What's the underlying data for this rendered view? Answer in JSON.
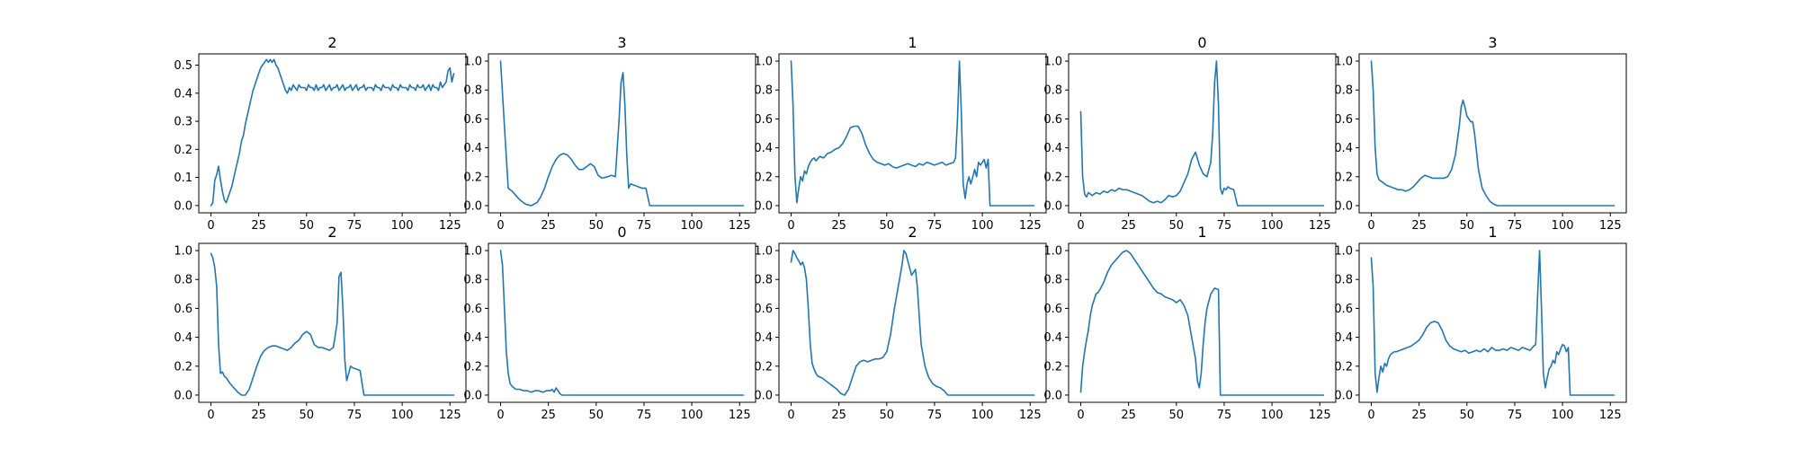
{
  "chart_data": [
    {
      "type": "line",
      "title": "2",
      "ylim": [
        -0.026,
        0.54
      ],
      "xlim": [
        -6.35,
        133.35
      ],
      "x_ticks": [
        "0",
        "25",
        "50",
        "75",
        "100",
        "125"
      ],
      "y_ticks": [
        "0.0",
        "0.1",
        "0.2",
        "0.3",
        "0.4",
        "0.5"
      ],
      "color": "#1f77b4",
      "x": [
        0,
        1,
        2,
        3,
        4,
        5,
        6,
        7,
        8,
        9,
        10,
        11,
        12,
        13,
        14,
        15,
        16,
        17,
        18,
        19,
        20,
        21,
        22,
        23,
        24,
        25,
        26,
        27,
        28,
        29,
        30,
        31,
        32,
        33,
        34,
        35,
        36,
        37,
        38,
        39,
        40,
        41,
        42,
        43,
        44,
        45,
        46,
        47,
        48,
        49,
        50,
        51,
        52,
        53,
        54,
        55,
        56,
        57,
        58,
        59,
        60,
        61,
        62,
        63,
        64,
        65,
        66,
        67,
        68,
        69,
        70,
        71,
        72,
        73,
        74,
        75,
        76,
        77,
        78,
        79,
        80,
        81,
        82,
        83,
        84,
        85,
        86,
        87,
        88,
        89,
        90,
        91,
        92,
        93,
        94,
        95,
        96,
        97,
        98,
        99,
        100,
        101,
        102,
        103,
        104,
        105,
        106,
        107,
        108,
        109,
        110,
        111,
        112,
        113,
        114,
        115,
        116,
        117,
        118,
        119,
        120,
        121,
        122,
        123,
        124,
        125,
        126,
        127
      ],
      "y": [
        0.0,
        0.01,
        0.09,
        0.11,
        0.14,
        0.09,
        0.05,
        0.02,
        0.01,
        0.03,
        0.05,
        0.07,
        0.1,
        0.13,
        0.16,
        0.19,
        0.23,
        0.25,
        0.29,
        0.32,
        0.35,
        0.38,
        0.41,
        0.43,
        0.45,
        0.47,
        0.49,
        0.5,
        0.51,
        0.52,
        0.51,
        0.52,
        0.51,
        0.52,
        0.5,
        0.49,
        0.47,
        0.45,
        0.43,
        0.41,
        0.4,
        0.42,
        0.41,
        0.43,
        0.42,
        0.41,
        0.43,
        0.42,
        0.42,
        0.42,
        0.41,
        0.43,
        0.42,
        0.42,
        0.41,
        0.43,
        0.41,
        0.42,
        0.42,
        0.43,
        0.41,
        0.42,
        0.43,
        0.41,
        0.42,
        0.42,
        0.43,
        0.41,
        0.42,
        0.43,
        0.41,
        0.42,
        0.42,
        0.43,
        0.41,
        0.42,
        0.43,
        0.41,
        0.42,
        0.42,
        0.43,
        0.41,
        0.42,
        0.42,
        0.42,
        0.41,
        0.43,
        0.42,
        0.42,
        0.41,
        0.43,
        0.42,
        0.42,
        0.42,
        0.41,
        0.43,
        0.42,
        0.42,
        0.41,
        0.43,
        0.42,
        0.42,
        0.42,
        0.41,
        0.43,
        0.42,
        0.42,
        0.41,
        0.43,
        0.42,
        0.42,
        0.43,
        0.41,
        0.42,
        0.43,
        0.41,
        0.43,
        0.42,
        0.42,
        0.41,
        0.44,
        0.42,
        0.43,
        0.44,
        0.48,
        0.49,
        0.44,
        0.47
      ]
    },
    {
      "type": "line",
      "title": "3",
      "ylim": [
        -0.05,
        1.05
      ],
      "xlim": [
        -6.35,
        133.35
      ],
      "x_ticks": [
        "0",
        "25",
        "50",
        "75",
        "100",
        "125"
      ],
      "y_ticks": [
        "0.0",
        "0.2",
        "0.4",
        "0.6",
        "0.8",
        "1.0"
      ],
      "color": "#1f77b4",
      "x": [
        0,
        2,
        4,
        6,
        8,
        10,
        13,
        16,
        19,
        21,
        23,
        25,
        27,
        29,
        31,
        33,
        35,
        37,
        39,
        41,
        43,
        45,
        47,
        49,
        51,
        53,
        56,
        58,
        60,
        62,
        63,
        64,
        65,
        66,
        67,
        68,
        70,
        72,
        74,
        76,
        77,
        78,
        80,
        127
      ],
      "y": [
        1.0,
        0.55,
        0.12,
        0.1,
        0.07,
        0.04,
        0.01,
        0.0,
        0.02,
        0.06,
        0.12,
        0.2,
        0.27,
        0.32,
        0.35,
        0.36,
        0.35,
        0.32,
        0.28,
        0.25,
        0.25,
        0.27,
        0.29,
        0.27,
        0.21,
        0.19,
        0.2,
        0.21,
        0.2,
        0.6,
        0.85,
        0.92,
        0.7,
        0.35,
        0.12,
        0.15,
        0.14,
        0.13,
        0.12,
        0.12,
        0.06,
        0.0,
        0.0,
        0.0
      ]
    },
    {
      "type": "line",
      "title": "1",
      "ylim": [
        -0.05,
        1.05
      ],
      "xlim": [
        -6.35,
        133.35
      ],
      "x_ticks": [
        "0",
        "25",
        "50",
        "75",
        "100",
        "125"
      ],
      "y_ticks": [
        "0.0",
        "0.2",
        "0.4",
        "0.6",
        "0.8",
        "1.0"
      ],
      "color": "#1f77b4",
      "x": [
        0,
        1,
        2,
        3,
        4,
        5,
        6,
        7,
        8,
        9,
        10,
        11,
        12,
        13,
        15,
        17,
        19,
        21,
        23,
        25,
        27,
        29,
        31,
        33,
        35,
        37,
        39,
        41,
        43,
        45,
        47,
        49,
        51,
        53,
        55,
        57,
        59,
        61,
        63,
        65,
        67,
        69,
        71,
        73,
        75,
        77,
        79,
        81,
        83,
        85,
        86,
        87,
        88,
        89,
        90,
        91,
        92,
        93,
        94,
        95,
        96,
        97,
        98,
        99,
        100,
        101,
        102,
        103,
        104,
        105,
        106,
        127
      ],
      "y": [
        1.0,
        0.7,
        0.2,
        0.02,
        0.12,
        0.2,
        0.17,
        0.24,
        0.22,
        0.27,
        0.3,
        0.32,
        0.33,
        0.31,
        0.34,
        0.33,
        0.36,
        0.37,
        0.39,
        0.4,
        0.43,
        0.48,
        0.54,
        0.55,
        0.55,
        0.5,
        0.42,
        0.36,
        0.32,
        0.3,
        0.29,
        0.28,
        0.29,
        0.27,
        0.26,
        0.27,
        0.28,
        0.29,
        0.28,
        0.27,
        0.29,
        0.28,
        0.3,
        0.29,
        0.28,
        0.29,
        0.3,
        0.28,
        0.29,
        0.3,
        0.33,
        0.6,
        1.0,
        0.65,
        0.15,
        0.05,
        0.15,
        0.2,
        0.15,
        0.2,
        0.25,
        0.2,
        0.3,
        0.28,
        0.3,
        0.32,
        0.26,
        0.32,
        0.0,
        0.0,
        0.0,
        0.0
      ]
    },
    {
      "type": "line",
      "title": "0",
      "ylim": [
        -0.05,
        1.05
      ],
      "xlim": [
        -6.35,
        133.35
      ],
      "x_ticks": [
        "0",
        "25",
        "50",
        "75",
        "100",
        "125"
      ],
      "y_ticks": [
        "0.0",
        "0.2",
        "0.4",
        "0.6",
        "0.8",
        "1.0"
      ],
      "color": "#1f77b4",
      "x": [
        0,
        1,
        2,
        3,
        4,
        6,
        8,
        10,
        12,
        14,
        16,
        18,
        20,
        22,
        24,
        26,
        28,
        30,
        32,
        34,
        36,
        38,
        40,
        42,
        44,
        46,
        48,
        50,
        52,
        54,
        56,
        58,
        60,
        62,
        64,
        66,
        68,
        69,
        70,
        71,
        72,
        73,
        74,
        75,
        76,
        77,
        78,
        80,
        82,
        84,
        86,
        127
      ],
      "y": [
        0.65,
        0.2,
        0.08,
        0.06,
        0.09,
        0.07,
        0.09,
        0.08,
        0.1,
        0.09,
        0.11,
        0.1,
        0.12,
        0.11,
        0.11,
        0.1,
        0.09,
        0.08,
        0.07,
        0.05,
        0.03,
        0.02,
        0.03,
        0.02,
        0.04,
        0.07,
        0.06,
        0.07,
        0.1,
        0.16,
        0.22,
        0.32,
        0.37,
        0.28,
        0.22,
        0.2,
        0.3,
        0.5,
        0.85,
        1.0,
        0.7,
        0.12,
        0.08,
        0.12,
        0.11,
        0.13,
        0.12,
        0.11,
        0.0,
        0.0,
        0.0,
        0.0
      ]
    },
    {
      "type": "line",
      "title": "3",
      "ylim": [
        -0.05,
        1.05
      ],
      "xlim": [
        -6.35,
        133.35
      ],
      "x_ticks": [
        "0",
        "25",
        "50",
        "75",
        "100",
        "125"
      ],
      "y_ticks": [
        "0.0",
        "0.2",
        "0.4",
        "0.6",
        "0.8",
        "1.0"
      ],
      "color": "#1f77b4",
      "x": [
        0,
        1,
        2,
        3,
        4,
        6,
        8,
        10,
        12,
        14,
        16,
        18,
        20,
        22,
        24,
        26,
        28,
        30,
        32,
        34,
        36,
        38,
        40,
        42,
        44,
        46,
        47,
        48,
        49,
        50,
        51,
        52,
        53,
        54,
        56,
        58,
        60,
        62,
        64,
        66,
        127
      ],
      "y": [
        1.0,
        0.8,
        0.4,
        0.22,
        0.18,
        0.16,
        0.14,
        0.13,
        0.12,
        0.11,
        0.11,
        0.1,
        0.11,
        0.13,
        0.16,
        0.19,
        0.21,
        0.2,
        0.19,
        0.19,
        0.19,
        0.19,
        0.2,
        0.25,
        0.35,
        0.55,
        0.68,
        0.73,
        0.68,
        0.62,
        0.6,
        0.58,
        0.58,
        0.5,
        0.25,
        0.12,
        0.07,
        0.03,
        0.01,
        0.0,
        0.0
      ]
    },
    {
      "type": "line",
      "title": "2",
      "ylim": [
        -0.05,
        1.05
      ],
      "xlim": [
        -6.35,
        133.35
      ],
      "x_ticks": [
        "0",
        "25",
        "50",
        "75",
        "100",
        "125"
      ],
      "y_ticks": [
        "0.0",
        "0.2",
        "0.4",
        "0.6",
        "0.8",
        "1.0"
      ],
      "color": "#1f77b4",
      "x": [
        0,
        1,
        2,
        3,
        4,
        5,
        6,
        7,
        8,
        10,
        12,
        14,
        16,
        18,
        20,
        22,
        24,
        26,
        28,
        30,
        32,
        34,
        36,
        38,
        40,
        42,
        44,
        46,
        48,
        50,
        52,
        54,
        56,
        58,
        60,
        62,
        64,
        66,
        67,
        68,
        69,
        70,
        71,
        72,
        73,
        74,
        76,
        78,
        80,
        82,
        127
      ],
      "y": [
        0.98,
        0.95,
        0.88,
        0.75,
        0.35,
        0.15,
        0.16,
        0.13,
        0.12,
        0.08,
        0.05,
        0.02,
        0.0,
        0.0,
        0.04,
        0.12,
        0.2,
        0.27,
        0.31,
        0.33,
        0.34,
        0.34,
        0.33,
        0.32,
        0.31,
        0.33,
        0.36,
        0.38,
        0.42,
        0.44,
        0.42,
        0.35,
        0.33,
        0.33,
        0.32,
        0.31,
        0.33,
        0.5,
        0.82,
        0.85,
        0.6,
        0.25,
        0.1,
        0.15,
        0.2,
        0.19,
        0.18,
        0.17,
        0.0,
        0.0,
        0.0
      ]
    },
    {
      "type": "line",
      "title": "0",
      "ylim": [
        -0.05,
        1.05
      ],
      "xlim": [
        -6.35,
        133.35
      ],
      "x_ticks": [
        "0",
        "25",
        "50",
        "75",
        "100",
        "125"
      ],
      "y_ticks": [
        "0.0",
        "0.2",
        "0.4",
        "0.6",
        "0.8",
        "1.0"
      ],
      "color": "#1f77b4",
      "x": [
        0,
        1,
        2,
        3,
        4,
        5,
        6,
        7,
        8,
        10,
        12,
        14,
        16,
        18,
        20,
        22,
        24,
        26,
        27,
        28,
        29,
        30,
        31,
        32,
        34,
        127
      ],
      "y": [
        1.0,
        0.9,
        0.6,
        0.3,
        0.15,
        0.08,
        0.06,
        0.05,
        0.04,
        0.04,
        0.03,
        0.03,
        0.02,
        0.03,
        0.03,
        0.02,
        0.03,
        0.03,
        0.04,
        0.02,
        0.05,
        0.03,
        0.01,
        0.0,
        0.0,
        0.0
      ]
    },
    {
      "type": "line",
      "title": "2",
      "ylim": [
        -0.05,
        1.05
      ],
      "xlim": [
        -6.35,
        133.35
      ],
      "x_ticks": [
        "0",
        "25",
        "50",
        "75",
        "100",
        "125"
      ],
      "y_ticks": [
        "0.0",
        "0.2",
        "0.4",
        "0.6",
        "0.8",
        "1.0"
      ],
      "color": "#1f77b4",
      "x": [
        0,
        1,
        2,
        3,
        4,
        5,
        6,
        7,
        8,
        9,
        10,
        11,
        12,
        13,
        14,
        16,
        18,
        20,
        22,
        24,
        26,
        28,
        30,
        32,
        34,
        36,
        38,
        40,
        42,
        44,
        46,
        48,
        50,
        52,
        54,
        56,
        58,
        59,
        60,
        61,
        62,
        63,
        64,
        65,
        66,
        67,
        68,
        70,
        72,
        74,
        76,
        78,
        80,
        82,
        84,
        86,
        127
      ],
      "y": [
        0.92,
        1.0,
        0.98,
        0.95,
        0.93,
        0.9,
        0.92,
        0.88,
        0.8,
        0.6,
        0.35,
        0.22,
        0.18,
        0.15,
        0.13,
        0.12,
        0.1,
        0.08,
        0.06,
        0.04,
        0.01,
        0.0,
        0.04,
        0.12,
        0.2,
        0.23,
        0.24,
        0.23,
        0.24,
        0.25,
        0.25,
        0.26,
        0.3,
        0.42,
        0.6,
        0.75,
        0.9,
        1.0,
        0.98,
        0.93,
        0.88,
        0.83,
        0.85,
        0.87,
        0.75,
        0.55,
        0.35,
        0.2,
        0.12,
        0.08,
        0.06,
        0.05,
        0.03,
        0.0,
        0.0,
        0.0,
        0.0
      ]
    },
    {
      "type": "line",
      "title": "1",
      "ylim": [
        -0.05,
        1.05
      ],
      "xlim": [
        -6.35,
        133.35
      ],
      "x_ticks": [
        "0",
        "25",
        "50",
        "75",
        "100",
        "125"
      ],
      "y_ticks": [
        "0.0",
        "0.2",
        "0.4",
        "0.6",
        "0.8",
        "1.0"
      ],
      "color": "#1f77b4",
      "x": [
        0,
        1,
        2,
        3,
        4,
        5,
        6,
        7,
        8,
        9,
        10,
        12,
        14,
        16,
        18,
        20,
        22,
        24,
        26,
        28,
        30,
        32,
        34,
        36,
        38,
        40,
        42,
        44,
        46,
        48,
        50,
        52,
        54,
        56,
        58,
        60,
        61,
        62,
        63,
        64,
        65,
        66,
        67,
        68,
        70,
        72,
        73,
        74,
        127
      ],
      "y": [
        0.02,
        0.2,
        0.3,
        0.38,
        0.45,
        0.55,
        0.62,
        0.66,
        0.7,
        0.71,
        0.73,
        0.78,
        0.85,
        0.9,
        0.93,
        0.96,
        0.99,
        1.0,
        0.98,
        0.94,
        0.9,
        0.86,
        0.82,
        0.78,
        0.74,
        0.71,
        0.7,
        0.68,
        0.67,
        0.66,
        0.64,
        0.66,
        0.62,
        0.55,
        0.4,
        0.25,
        0.1,
        0.05,
        0.15,
        0.35,
        0.5,
        0.6,
        0.65,
        0.7,
        0.74,
        0.73,
        0.0,
        0.0,
        0.0
      ]
    },
    {
      "type": "line",
      "title": "1",
      "ylim": [
        -0.05,
        1.05
      ],
      "xlim": [
        -6.35,
        133.35
      ],
      "x_ticks": [
        "0",
        "25",
        "50",
        "75",
        "100",
        "125"
      ],
      "y_ticks": [
        "0.0",
        "0.2",
        "0.4",
        "0.6",
        "0.8",
        "1.0"
      ],
      "color": "#1f77b4",
      "x": [
        0,
        1,
        2,
        3,
        4,
        5,
        6,
        7,
        8,
        9,
        10,
        11,
        12,
        13,
        15,
        17,
        19,
        21,
        23,
        25,
        27,
        29,
        31,
        33,
        35,
        37,
        39,
        41,
        43,
        45,
        47,
        49,
        51,
        53,
        55,
        57,
        59,
        61,
        63,
        65,
        67,
        69,
        71,
        73,
        75,
        77,
        79,
        81,
        83,
        85,
        86,
        87,
        88,
        89,
        90,
        91,
        92,
        93,
        94,
        95,
        96,
        97,
        98,
        99,
        100,
        101,
        102,
        103,
        104,
        105,
        106,
        127
      ],
      "y": [
        0.95,
        0.75,
        0.15,
        0.02,
        0.12,
        0.2,
        0.16,
        0.22,
        0.2,
        0.25,
        0.28,
        0.29,
        0.3,
        0.3,
        0.31,
        0.32,
        0.33,
        0.34,
        0.36,
        0.38,
        0.42,
        0.47,
        0.5,
        0.51,
        0.5,
        0.45,
        0.38,
        0.34,
        0.32,
        0.31,
        0.3,
        0.31,
        0.29,
        0.3,
        0.31,
        0.3,
        0.32,
        0.3,
        0.33,
        0.31,
        0.31,
        0.32,
        0.31,
        0.33,
        0.32,
        0.31,
        0.33,
        0.32,
        0.31,
        0.34,
        0.35,
        0.7,
        1.0,
        0.6,
        0.15,
        0.05,
        0.12,
        0.18,
        0.2,
        0.24,
        0.22,
        0.3,
        0.28,
        0.32,
        0.35,
        0.34,
        0.3,
        0.33,
        0.0,
        0.0,
        0.0,
        0.0
      ]
    }
  ]
}
